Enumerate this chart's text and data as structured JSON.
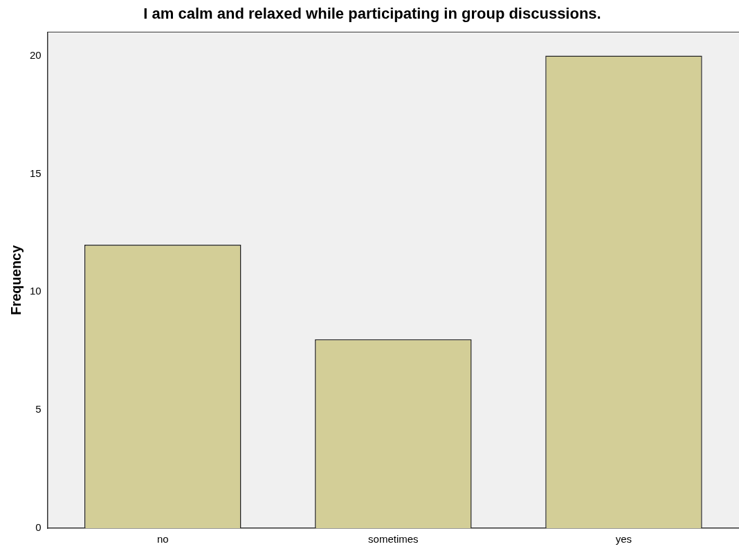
{
  "chart_data": {
    "type": "bar",
    "title": "I am calm and relaxed while participating in group discussions.",
    "ylabel": "Frequency",
    "categories": [
      "no",
      "sometimes",
      "yes"
    ],
    "values": [
      12,
      8,
      20
    ],
    "color": "#d3ce97",
    "ylim": [
      0,
      21
    ],
    "yticks": [
      0,
      5,
      10,
      15,
      20
    ],
    "grid": false,
    "legend": false
  }
}
